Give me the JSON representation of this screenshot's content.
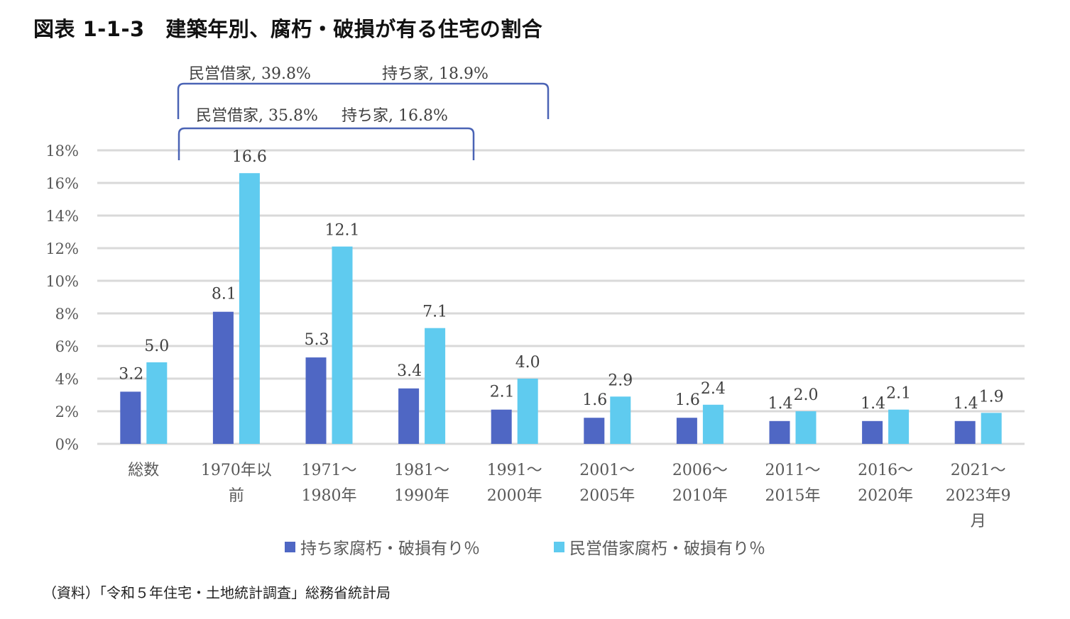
{
  "page": {
    "title": "図表 1-1-3　建築年別、腐朽・破損が有る住宅の割合",
    "source": "（資料）「令和５年住宅・土地統計調査」総務省統計局"
  },
  "colors": {
    "owner": "#4f67c4",
    "rental": "#5fcbef",
    "grid": "#d9d9d9",
    "bracket": "#4a63b5"
  },
  "chart_data": {
    "type": "bar",
    "title": "建築年別、腐朽・破損が有る住宅の割合",
    "xlabel": "",
    "ylabel": "",
    "ylim": [
      0,
      18
    ],
    "yticks": [
      0,
      2,
      4,
      6,
      8,
      10,
      12,
      14,
      16,
      18
    ],
    "ytick_labels": [
      "0%",
      "2%",
      "4%",
      "6%",
      "8%",
      "10%",
      "12%",
      "14%",
      "16%",
      "18%"
    ],
    "grid": true,
    "legend_position": "bottom",
    "categories": [
      [
        "総数"
      ],
      [
        "1970年以",
        "前"
      ],
      [
        "1971～",
        "1980年"
      ],
      [
        "1981～",
        "1990年"
      ],
      [
        "1991～",
        "2000年"
      ],
      [
        "2001～",
        "2005年"
      ],
      [
        "2006～",
        "2010年"
      ],
      [
        "2011～",
        "2015年"
      ],
      [
        "2016～",
        "2020年"
      ],
      [
        "2021～",
        "2023年9",
        "月"
      ]
    ],
    "series": [
      {
        "name": "持ち家腐朽・破損有り％",
        "color": "#4f67c4",
        "values": [
          3.2,
          8.1,
          5.3,
          3.4,
          2.1,
          1.6,
          1.6,
          1.4,
          1.4,
          1.4
        ],
        "labels": [
          "3.2",
          "8.1",
          "5.3",
          "3.4",
          "2.1",
          "1.6",
          "1.6",
          "1.4",
          "1.4",
          "1.4"
        ]
      },
      {
        "name": "民営借家腐朽・破損有り％",
        "color": "#5fcbef",
        "values": [
          5.0,
          16.6,
          12.1,
          7.1,
          4.0,
          2.9,
          2.4,
          2.0,
          2.1,
          1.9
        ],
        "labels": [
          "5.0",
          "16.6",
          "12.1",
          "7.1",
          "4.0",
          "2.9",
          "2.4",
          "2.0",
          "2.1",
          "1.9"
        ]
      }
    ],
    "annotations": [
      {
        "text_left": "民営借家, 39.8%",
        "text_right": "持ち家, 18.9%",
        "span_categories": [
          0.5,
          4.5
        ]
      },
      {
        "text_left": "民営借家, 35.8%",
        "text_right": "持ち家, 16.8%",
        "span_categories": [
          0.5,
          3.5
        ]
      }
    ]
  }
}
